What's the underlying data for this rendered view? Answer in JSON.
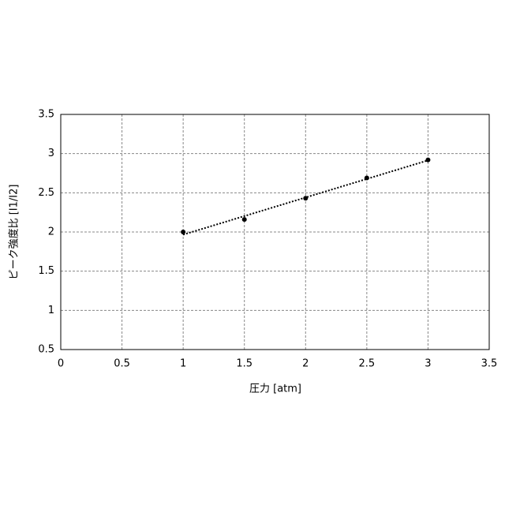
{
  "chart_data": {
    "type": "scatter",
    "x_label": "圧力 [atm]",
    "y_label": "ピーク強度比 [I1/I2]",
    "x": [
      1,
      1.5,
      2,
      2.5,
      3
    ],
    "values": [
      2.0,
      2.16,
      2.43,
      2.69,
      2.92
    ],
    "color": "#000000",
    "trendline": true,
    "xlim": [
      0,
      3.5
    ],
    "xticks": [
      0,
      0.5,
      1,
      1.5,
      2,
      2.5,
      3,
      3.5
    ],
    "ylim": [
      0.5,
      3.5
    ],
    "yticks": [
      0.5,
      1,
      1.5,
      2,
      2.5,
      3,
      3.5
    ],
    "grid": true
  }
}
